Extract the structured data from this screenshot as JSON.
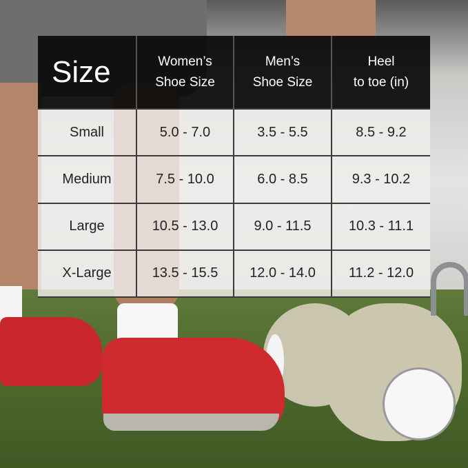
{
  "size_chart": {
    "headers": {
      "size": "Size",
      "womens_line1": "Women’s",
      "womens_line2": "Shoe Size",
      "mens_line1": "Men’s",
      "mens_line2": "Shoe Size",
      "heel_line1": "Heel",
      "heel_line2": "to toe (in)"
    },
    "rows": [
      {
        "size": "Small",
        "womens": "5.0 - 7.0",
        "mens": "3.5 - 5.5",
        "heel_to_toe": "8.5 - 9.2"
      },
      {
        "size": "Medium",
        "womens": "7.5 - 10.0",
        "mens": "6.0 - 8.5",
        "heel_to_toe": "9.3 - 10.2"
      },
      {
        "size": "Large",
        "womens": "10.5 - 13.0",
        "mens": "9.0 - 11.5",
        "heel_to_toe": "10.3 - 11.1"
      },
      {
        "size": "X-Large",
        "womens": "13.5 - 15.5",
        "mens": "12.0 - 14.0",
        "heel_to_toe": "11.2 - 12.0"
      }
    ]
  },
  "colors": {
    "header_bg": "#0a0a0a",
    "cell_bg": "#f0eeec",
    "shoe_red": "#cf2a30",
    "turf_green": "#4f6b2e"
  }
}
